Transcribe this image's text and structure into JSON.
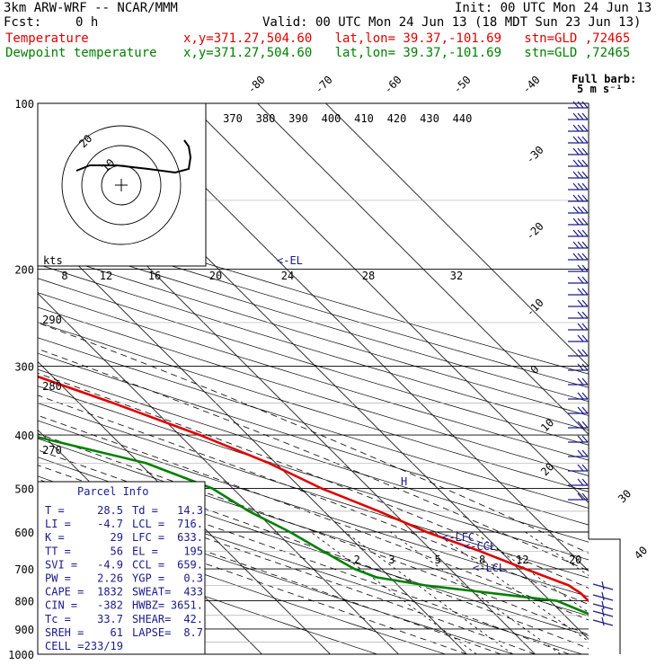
{
  "header": {
    "model": "3km ARW-WRF -- NCAR/MMM",
    "init": "Init: 00 UTC Mon 24 Jun 13",
    "fcst_label": "Fcst:",
    "fcst_value": "0 h",
    "valid": "Valid: 00 UTC Mon 24 Jun 13 (18 MDT Sun 23 Jun 13)",
    "legend": [
      {
        "name": "Temperature",
        "info": "x,y=371.27,504.60   lat,lon= 39.37,-101.69   stn=GLD ,72465",
        "color": "#e00000"
      },
      {
        "name": "Dewpoint temperature",
        "info": "x,y=371.27,504.60   lat,lon= 39.37,-101.69   stn=GLD ,72465",
        "color": "#008000"
      }
    ]
  },
  "full_barb": {
    "line1": "Full barb:",
    "line2": "5 m s⁻¹"
  },
  "chart_data": {
    "type": "line",
    "title": "",
    "xlabel": "",
    "ylabel": "",
    "y_axis": {
      "scale": "log",
      "ylim": [
        1000,
        100
      ],
      "tick_labels": [
        "100",
        "200",
        "300",
        "400",
        "500",
        "600",
        "700",
        "800",
        "900",
        "1000"
      ]
    },
    "isotherm_labels": [
      "-80",
      "-70",
      "-60",
      "-50",
      "-40",
      "-30",
      "-20",
      "-10",
      "0",
      "10",
      "20",
      "30",
      "40"
    ],
    "theta_labels": [
      "370",
      "380",
      "390",
      "400",
      "410",
      "420",
      "430",
      "440"
    ],
    "theta_left_labels": [
      "290",
      "280",
      "270"
    ],
    "mixing_ratio_labels": [
      "2",
      "3",
      "5",
      "8",
      "12",
      "20"
    ],
    "series": [
      {
        "name": "Temperature",
        "color": "#e00000",
        "points": [
          [
            900,
            28.5
          ],
          [
            850,
            22
          ],
          [
            800,
            15.6
          ],
          [
            775,
            15.6
          ],
          [
            750,
            15
          ],
          [
            700,
            11
          ],
          [
            650,
            7
          ],
          [
            600,
            2
          ],
          [
            550,
            -2
          ],
          [
            500,
            -7
          ],
          [
            450,
            -11
          ],
          [
            400,
            -17
          ],
          [
            350,
            -25
          ],
          [
            300,
            -35
          ],
          [
            250,
            -45
          ],
          [
            220,
            -53
          ],
          [
            200,
            -58
          ],
          [
            180,
            -61
          ],
          [
            160,
            -60
          ],
          [
            140,
            -60
          ],
          [
            120,
            -60
          ],
          [
            100,
            -59
          ]
        ]
      },
      {
        "name": "Dewpoint temperature",
        "color": "#008000",
        "points": [
          [
            900,
            14.3
          ],
          [
            850,
            14
          ],
          [
            800,
            11
          ],
          [
            750,
            -6
          ],
          [
            725,
            -12
          ],
          [
            700,
            -14
          ],
          [
            650,
            -16
          ],
          [
            600,
            -18
          ],
          [
            550,
            -21
          ],
          [
            500,
            -23
          ],
          [
            450,
            -29
          ],
          [
            400,
            -42
          ],
          [
            350,
            -55
          ],
          [
            300,
            -57
          ],
          [
            250,
            -63
          ],
          [
            200,
            -70
          ],
          [
            160,
            -76
          ],
          [
            140,
            -80
          ],
          [
            120,
            -83
          ],
          [
            100,
            -85
          ]
        ]
      }
    ],
    "annotations": [
      "<-EL",
      "<-LFC",
      "<-CCL",
      "<-LCL"
    ],
    "hodograph": {
      "units_label": "kts",
      "speed_labels": [
        "8",
        "12",
        "16",
        "20",
        "24",
        "28",
        "32"
      ],
      "ring_labels": [
        "10",
        "20"
      ]
    },
    "isotherm_right_labels": [
      "30",
      "40"
    ]
  },
  "parcel_info": {
    "title": "Parcel Info",
    "rows": [
      [
        "T  =",
        "28.5",
        "Td =",
        "14.3"
      ],
      [
        "LI =",
        "-4.7",
        "LCL =",
        "716."
      ],
      [
        "K  =",
        "29",
        "LFC =",
        "633."
      ],
      [
        "TT =",
        "56",
        "EL  =",
        "195"
      ],
      [
        "SVI =",
        "-4.9",
        "CCL =",
        "659."
      ],
      [
        "PW =",
        "2.26",
        "YGP =",
        "0.3"
      ],
      [
        "CAPE =",
        "1832",
        "SWEAT=",
        "433"
      ],
      [
        "CIN =",
        "-382",
        "HWBZ=",
        "3651."
      ],
      [
        "Tc =",
        "33.7",
        "SHEAR=",
        "42."
      ],
      [
        "SREH =",
        "61",
        "LAPSE=",
        "8.7"
      ],
      [
        "CELL =",
        "233/19",
        "",
        ""
      ]
    ]
  }
}
